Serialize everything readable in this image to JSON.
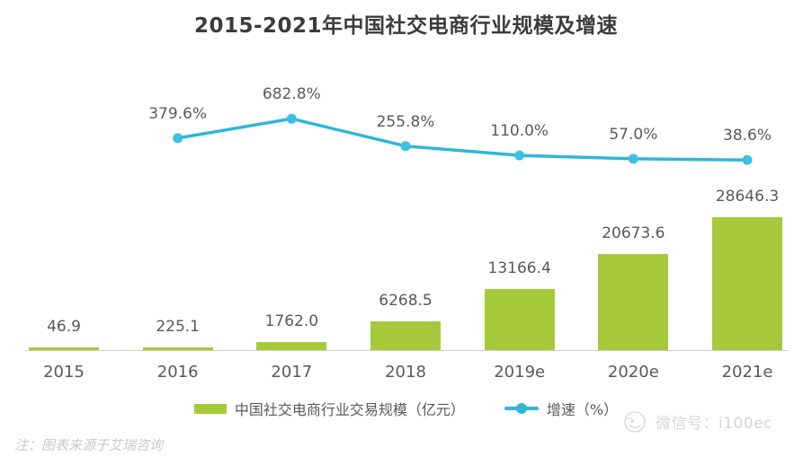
{
  "title": "2015-2021年中国社交电商行业规模及增速",
  "chart_data": {
    "type": "bar",
    "title": "2015-2021年中国社交电商行业规模及增速",
    "categories": [
      "2015",
      "2016",
      "2017",
      "2018",
      "2019e",
      "2020e",
      "2021e"
    ],
    "series": [
      {
        "name": "中国社交电商行业交易规模（亿元）",
        "type": "bar",
        "color": "#a5c93a",
        "values": [
          46.9,
          225.1,
          1762.0,
          6268.5,
          13166.4,
          20673.6,
          28646.3
        ],
        "labels": [
          "46.9",
          "225.1",
          "1762.0",
          "6268.5",
          "13166.4",
          "20673.6",
          "28646.3"
        ]
      },
      {
        "name": "增速（%）",
        "type": "line",
        "color": "#2fb6d9",
        "values": [
          null,
          379.6,
          682.8,
          255.8,
          110.0,
          57.0,
          38.6
        ],
        "labels": [
          "379.6%",
          "682.8%",
          "255.8%",
          "110.0%",
          "57.0%",
          "38.6%"
        ]
      }
    ],
    "xlabel": "",
    "ylabel": "",
    "bar_axis_range": [
      0,
      28646.3
    ],
    "line_axis_range": [
      0,
      800
    ],
    "grid": false,
    "legend_position": "bottom"
  },
  "legend": {
    "bar_label": "中国社交电商行业交易规模（亿元）",
    "line_label": "增速（%）"
  },
  "footer": {
    "note": "注：图表来源于艾瑞咨询",
    "watermark": "微信号：i100ec"
  },
  "colors": {
    "bar": "#a5c93a",
    "line": "#2fb6d9",
    "text": "#595959",
    "title": "#3c3c3c",
    "axis": "#cbcbcb",
    "watermark": "#d5d5d5"
  }
}
